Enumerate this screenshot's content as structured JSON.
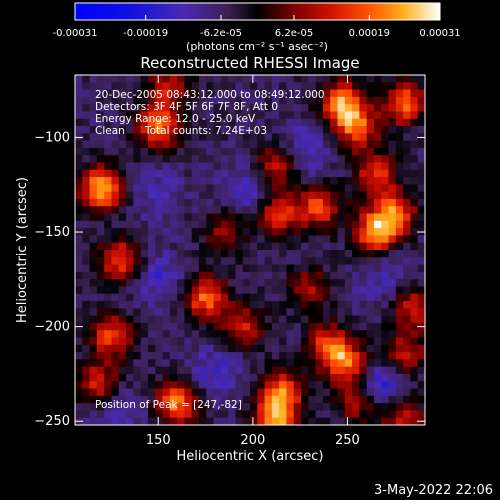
{
  "chart_data": {
    "type": "heatmap",
    "title": "Reconstructed RHESSI Image",
    "xlabel": "Heliocentric X (arcsec)",
    "ylabel": "Heliocentric Y (arcsec)",
    "xlim": [
      106,
      291
    ],
    "ylim": [
      -252,
      -67
    ],
    "x_ticks": [
      150,
      200,
      250
    ],
    "y_ticks": [
      -100,
      -150,
      -200,
      -250
    ],
    "colorbar": {
      "tick_labels": [
        "-0.00031",
        "-0.00019",
        "-6.2e-05",
        "6.2e-05",
        "0.00019",
        "0.00031"
      ],
      "tick_values": [
        -0.00031,
        -0.00019,
        -6.2e-05,
        6.2e-05,
        0.00019,
        0.00031
      ],
      "units_label": "(photons cm⁻² s⁻¹ asec⁻²)",
      "range": [
        -0.00031,
        0.00031
      ]
    },
    "annotations": {
      "time_range": "20-Dec-2005 08:43:12.000 to 08:49:12.000",
      "detectors": "Detectors: 3F 4F 5F 6F 7F 8F, Att 0",
      "energy": "Energy Range: 12.0 - 25.0 keV",
      "clean": "Clean",
      "total_counts": "Total counts: 7.24E+03",
      "peak": "Position of Peak = [247,-82]"
    },
    "blobs": [
      {
        "x": 120,
        "y": -127,
        "v": 1.0
      },
      {
        "x": 150,
        "y": -95,
        "v": 0.8
      },
      {
        "x": 155,
        "y": -75,
        "v": 0.55
      },
      {
        "x": 213,
        "y": -140,
        "v": 0.7
      },
      {
        "x": 213,
        "y": -115,
        "v": 0.6
      },
      {
        "x": 235,
        "y": -137,
        "v": 0.7
      },
      {
        "x": 265,
        "y": -150,
        "v": 0.9
      },
      {
        "x": 275,
        "y": -140,
        "v": 0.75
      },
      {
        "x": 265,
        "y": -120,
        "v": 0.65
      },
      {
        "x": 255,
        "y": -95,
        "v": 0.75
      },
      {
        "x": 247,
        "y": -82,
        "v": 0.9
      },
      {
        "x": 280,
        "y": -82,
        "v": 0.8
      },
      {
        "x": 175,
        "y": -185,
        "v": 0.8
      },
      {
        "x": 160,
        "y": -240,
        "v": 0.85
      },
      {
        "x": 125,
        "y": -205,
        "v": 0.7
      },
      {
        "x": 130,
        "y": -165,
        "v": 0.75
      },
      {
        "x": 118,
        "y": -230,
        "v": 0.6
      },
      {
        "x": 240,
        "y": -210,
        "v": 0.7
      },
      {
        "x": 215,
        "y": -235,
        "v": 0.8
      },
      {
        "x": 212,
        "y": -250,
        "v": 0.85
      },
      {
        "x": 250,
        "y": -220,
        "v": 0.8
      },
      {
        "x": 255,
        "y": -240,
        "v": 0.55
      },
      {
        "x": 280,
        "y": -215,
        "v": 0.6
      },
      {
        "x": 285,
        "y": -190,
        "v": 0.6
      },
      {
        "x": 195,
        "y": -200,
        "v": 0.55
      },
      {
        "x": 280,
        "y": -250,
        "v": 0.6
      },
      {
        "x": 185,
        "y": -150,
        "v": 0.45
      },
      {
        "x": 230,
        "y": -180,
        "v": 0.45
      }
    ],
    "negative_regions": [
      {
        "x": 265,
        "y": -230,
        "v": -0.9
      },
      {
        "x": 198,
        "y": -130,
        "v": -0.6
      },
      {
        "x": 150,
        "y": -175,
        "v": -0.55
      },
      {
        "x": 228,
        "y": -107,
        "v": -0.6
      },
      {
        "x": 180,
        "y": -225,
        "v": -0.55
      },
      {
        "x": 270,
        "y": -175,
        "v": -0.45
      },
      {
        "x": 130,
        "y": -245,
        "v": -0.45
      },
      {
        "x": 150,
        "y": -130,
        "v": -0.4
      }
    ]
  },
  "footer_date": "3-May-2022 22:06"
}
